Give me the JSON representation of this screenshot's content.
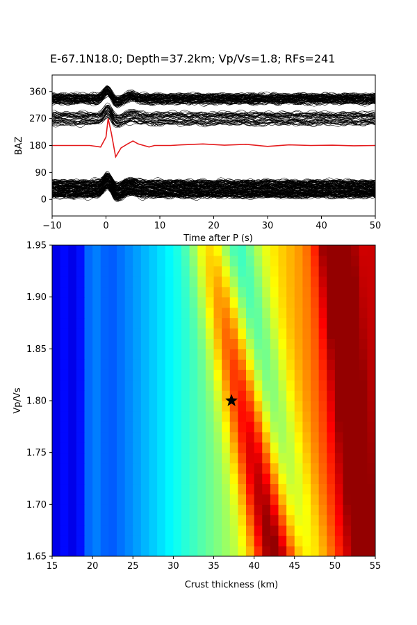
{
  "title": "E-67.1N18.0; Depth=37.2km; Vp/Vs=1.8; RFs=241",
  "chart_data": [
    {
      "type": "line",
      "panel": "receiver-functions",
      "xlabel": "Time after P (s)",
      "ylabel": "BAZ",
      "xlim": [
        -10,
        50
      ],
      "ylim": [
        -55,
        415
      ],
      "xticks": [
        "−10",
        "0",
        "10",
        "20",
        "30",
        "40",
        "50"
      ],
      "xtick_values": [
        -10,
        0,
        10,
        20,
        30,
        40,
        50
      ],
      "yticks": [
        "0",
        "90",
        "180",
        "270",
        "360"
      ],
      "ytick_values": [
        0,
        90,
        180,
        270,
        360
      ],
      "trace_count": 241,
      "trace_color": "#000000",
      "baz_groups": [
        {
          "center": 35,
          "spread": 55,
          "count": 130
        },
        {
          "center": 270,
          "spread": 40,
          "count": 40
        },
        {
          "center": 335,
          "spread": 30,
          "count": 71
        }
      ],
      "stacked_trace": {
        "color": "#e41a1c",
        "baseline": 180,
        "points": [
          [
            -10,
            0
          ],
          [
            -3,
            0
          ],
          [
            -1,
            -5
          ],
          [
            0,
            28
          ],
          [
            0.4,
            90
          ],
          [
            1,
            40
          ],
          [
            1.8,
            -38
          ],
          [
            2.8,
            -8
          ],
          [
            4,
            5
          ],
          [
            5,
            15
          ],
          [
            6,
            5
          ],
          [
            8,
            -5
          ],
          [
            9,
            0
          ],
          [
            12,
            0
          ],
          [
            14,
            2
          ],
          [
            18,
            5
          ],
          [
            22,
            1
          ],
          [
            26,
            4
          ],
          [
            30,
            -3
          ],
          [
            34,
            2
          ],
          [
            38,
            0
          ],
          [
            42,
            1
          ],
          [
            46,
            -1
          ],
          [
            50,
            0
          ]
        ]
      }
    },
    {
      "type": "heatmap",
      "panel": "h-kappa-stack",
      "xlabel": "Crust thickness (km)",
      "ylabel": "Vp/Vs",
      "xlim": [
        15,
        55
      ],
      "ylim": [
        1.65,
        1.95
      ],
      "xticks": [
        "15",
        "20",
        "25",
        "30",
        "35",
        "40",
        "45",
        "50",
        "55"
      ],
      "xtick_values": [
        15,
        20,
        25,
        30,
        35,
        40,
        45,
        50,
        55
      ],
      "yticks": [
        "1.65",
        "1.70",
        "1.75",
        "1.80",
        "1.85",
        "1.90",
        "1.95"
      ],
      "ytick_values": [
        1.65,
        1.7,
        1.75,
        1.8,
        1.85,
        1.9,
        1.95
      ],
      "colormap": "jet",
      "best_fit": {
        "thickness_km": 37.2,
        "vpvs": 1.8,
        "marker": "star"
      }
    }
  ]
}
